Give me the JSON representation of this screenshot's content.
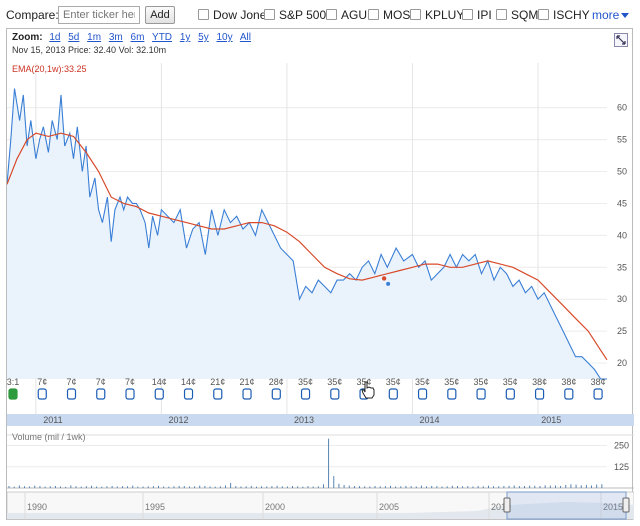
{
  "compare": {
    "label": "Compare:",
    "placeholder": "Enter ticker here",
    "add_label": "Add",
    "items": [
      "Dow Jones",
      "S&P 500",
      "AGU",
      "MOS",
      "KPLUY",
      "IPI",
      "SQM",
      "ISCHY"
    ],
    "more_label": "more"
  },
  "zoom": {
    "label": "Zoom:",
    "options": [
      "1d",
      "5d",
      "1m",
      "3m",
      "6m",
      "YTD",
      "1y",
      "5y",
      "10y",
      "All"
    ]
  },
  "info_line": "Nov 15, 2013 Price: 32.40 Vol: 32.10m",
  "ema_label": "EMA(20,1w):33.25",
  "volume_label": "Volume (mil / 1wk)",
  "colors": {
    "price_line": "#3a7fd5",
    "price_fill": "#eaf3fc",
    "ema_line": "#d84a2a",
    "link": "#2255cc",
    "marker": "#1a5db4",
    "split_marker": "#2e9a3e"
  },
  "icons": {
    "expand": "expand-chart-icon",
    "cursor": "hand-cursor-icon"
  },
  "chart_data": {
    "type": "line",
    "y_axis_ticks": [
      20,
      25,
      30,
      35,
      40,
      45,
      50,
      55,
      60
    ],
    "x_axis_labels": [
      "2011",
      "2012",
      "2013",
      "2014",
      "2015"
    ],
    "ylim": [
      17.5,
      67
    ],
    "series": [
      {
        "name": "Price",
        "x": [
          2010.77,
          2010.8,
          2010.83,
          2010.87,
          2010.9,
          2010.93,
          2010.96,
          2011.0,
          2011.03,
          2011.06,
          2011.1,
          2011.13,
          2011.17,
          2011.2,
          2011.23,
          2011.27,
          2011.3,
          2011.33,
          2011.37,
          2011.4,
          2011.43,
          2011.47,
          2011.5,
          2011.53,
          2011.57,
          2011.6,
          2011.63,
          2011.67,
          2011.7,
          2011.73,
          2011.77,
          2011.8,
          2011.83,
          2011.87,
          2011.9,
          2011.93,
          2011.97,
          2012.0,
          2012.05,
          2012.1,
          2012.15,
          2012.2,
          2012.25,
          2012.3,
          2012.35,
          2012.4,
          2012.45,
          2012.5,
          2012.55,
          2012.6,
          2012.65,
          2012.7,
          2012.75,
          2012.8,
          2012.85,
          2012.9,
          2012.95,
          2013.0,
          2013.05,
          2013.1,
          2013.15,
          2013.2,
          2013.25,
          2013.3,
          2013.35,
          2013.4,
          2013.45,
          2013.5,
          2013.55,
          2013.6,
          2013.65,
          2013.7,
          2013.75,
          2013.8,
          2013.87,
          2013.93,
          2014.0,
          2014.05,
          2014.1,
          2014.15,
          2014.2,
          2014.25,
          2014.3,
          2014.35,
          2014.4,
          2014.45,
          2014.5,
          2014.55,
          2014.6,
          2014.65,
          2014.7,
          2014.75,
          2014.8,
          2014.85,
          2014.9,
          2014.95,
          2015.0,
          2015.05,
          2015.1,
          2015.15,
          2015.2,
          2015.25,
          2015.3,
          2015.35,
          2015.4,
          2015.45,
          2015.5,
          2015.55
        ],
        "values": [
          48,
          55,
          63,
          58,
          62,
          54,
          58,
          52,
          55,
          57,
          53,
          58,
          55,
          62,
          54,
          56,
          52,
          57,
          50,
          54,
          46,
          49,
          44,
          42,
          46,
          39,
          44,
          46,
          44,
          46,
          45,
          45,
          44,
          42,
          38,
          43,
          40,
          44,
          43,
          42,
          44,
          38,
          41,
          42,
          37,
          44,
          40,
          44,
          42,
          43,
          41,
          42,
          40,
          44,
          42,
          40,
          38,
          37,
          36,
          30,
          32,
          31,
          33,
          32,
          31,
          33,
          33,
          34,
          33,
          35,
          36,
          34,
          37,
          35,
          38,
          36,
          37,
          35,
          36,
          33,
          34,
          35,
          37,
          35,
          37,
          36,
          37,
          34,
          36,
          33,
          35,
          34,
          32,
          33,
          31,
          32,
          30,
          31,
          29,
          27,
          25,
          23,
          21,
          21,
          20,
          19,
          17.5,
          17.5
        ]
      },
      {
        "name": "EMA(20,1w)",
        "x": [
          2010.77,
          2010.85,
          2010.93,
          2011.0,
          2011.1,
          2011.2,
          2011.3,
          2011.4,
          2011.5,
          2011.6,
          2011.7,
          2011.8,
          2011.9,
          2012.0,
          2012.1,
          2012.2,
          2012.3,
          2012.4,
          2012.5,
          2012.6,
          2012.7,
          2012.8,
          2012.9,
          2013.0,
          2013.1,
          2013.2,
          2013.3,
          2013.4,
          2013.5,
          2013.6,
          2013.7,
          2013.8,
          2013.9,
          2014.0,
          2014.1,
          2014.2,
          2014.3,
          2014.4,
          2014.5,
          2014.6,
          2014.7,
          2014.8,
          2014.9,
          2015.0,
          2015.1,
          2015.2,
          2015.3,
          2015.4,
          2015.5,
          2015.55
        ],
        "values": [
          48,
          52,
          55,
          56,
          55.5,
          56,
          55.5,
          53,
          50,
          46,
          45,
          44.5,
          43.5,
          43,
          42.5,
          42,
          41.5,
          41,
          41,
          41.5,
          42,
          42,
          41.5,
          40.5,
          39,
          37,
          35,
          34,
          33.2,
          33,
          33.5,
          34,
          34.5,
          35,
          35.5,
          35.5,
          35,
          35,
          35.5,
          36,
          35.5,
          35,
          34,
          33,
          31,
          29,
          27,
          25,
          22,
          20.5
        ]
      }
    ],
    "highlight_point": {
      "label": "Nov 15, 2013",
      "price": 32.4,
      "ema": 33.25
    },
    "dividend_markers": [
      "3:1",
      "7¢",
      "7¢",
      "7¢",
      "7¢",
      "14¢",
      "14¢",
      "21¢",
      "21¢",
      "28¢",
      "35¢",
      "35¢",
      "35¢",
      "35¢",
      "35¢",
      "35¢",
      "35¢",
      "35¢",
      "38¢",
      "38¢",
      "38¢"
    ],
    "volume": {
      "ticks": [
        250,
        125
      ],
      "values": [
        12,
        8,
        15,
        10,
        9,
        14,
        11,
        8,
        10,
        12,
        9,
        7,
        15,
        10,
        8,
        11,
        13,
        9,
        8,
        10,
        12,
        9,
        11,
        10,
        14,
        8,
        9,
        10,
        11,
        13,
        9,
        8,
        10,
        12,
        11,
        9,
        10,
        14,
        12,
        9,
        8,
        10,
        15,
        30,
        11,
        9,
        10,
        12,
        8,
        10,
        9,
        11,
        13,
        10,
        9,
        12,
        10,
        8,
        11,
        9,
        10,
        22,
        290,
        70,
        25,
        18,
        14,
        12,
        11,
        10,
        9,
        12,
        10,
        11,
        13,
        9,
        10,
        12,
        11,
        9,
        14,
        10,
        12,
        11,
        9,
        10,
        13,
        12,
        10,
        11,
        9,
        12,
        10,
        14,
        11,
        10,
        12,
        13,
        15,
        11,
        12,
        14,
        13,
        12,
        16,
        14,
        15,
        12,
        18,
        22,
        20,
        16,
        18,
        15,
        20,
        22
      ],
      "ylim": [
        0,
        300
      ]
    },
    "navigator_labels": [
      "1990",
      "1995",
      "2000",
      "2005",
      "2010",
      "2015"
    ]
  }
}
